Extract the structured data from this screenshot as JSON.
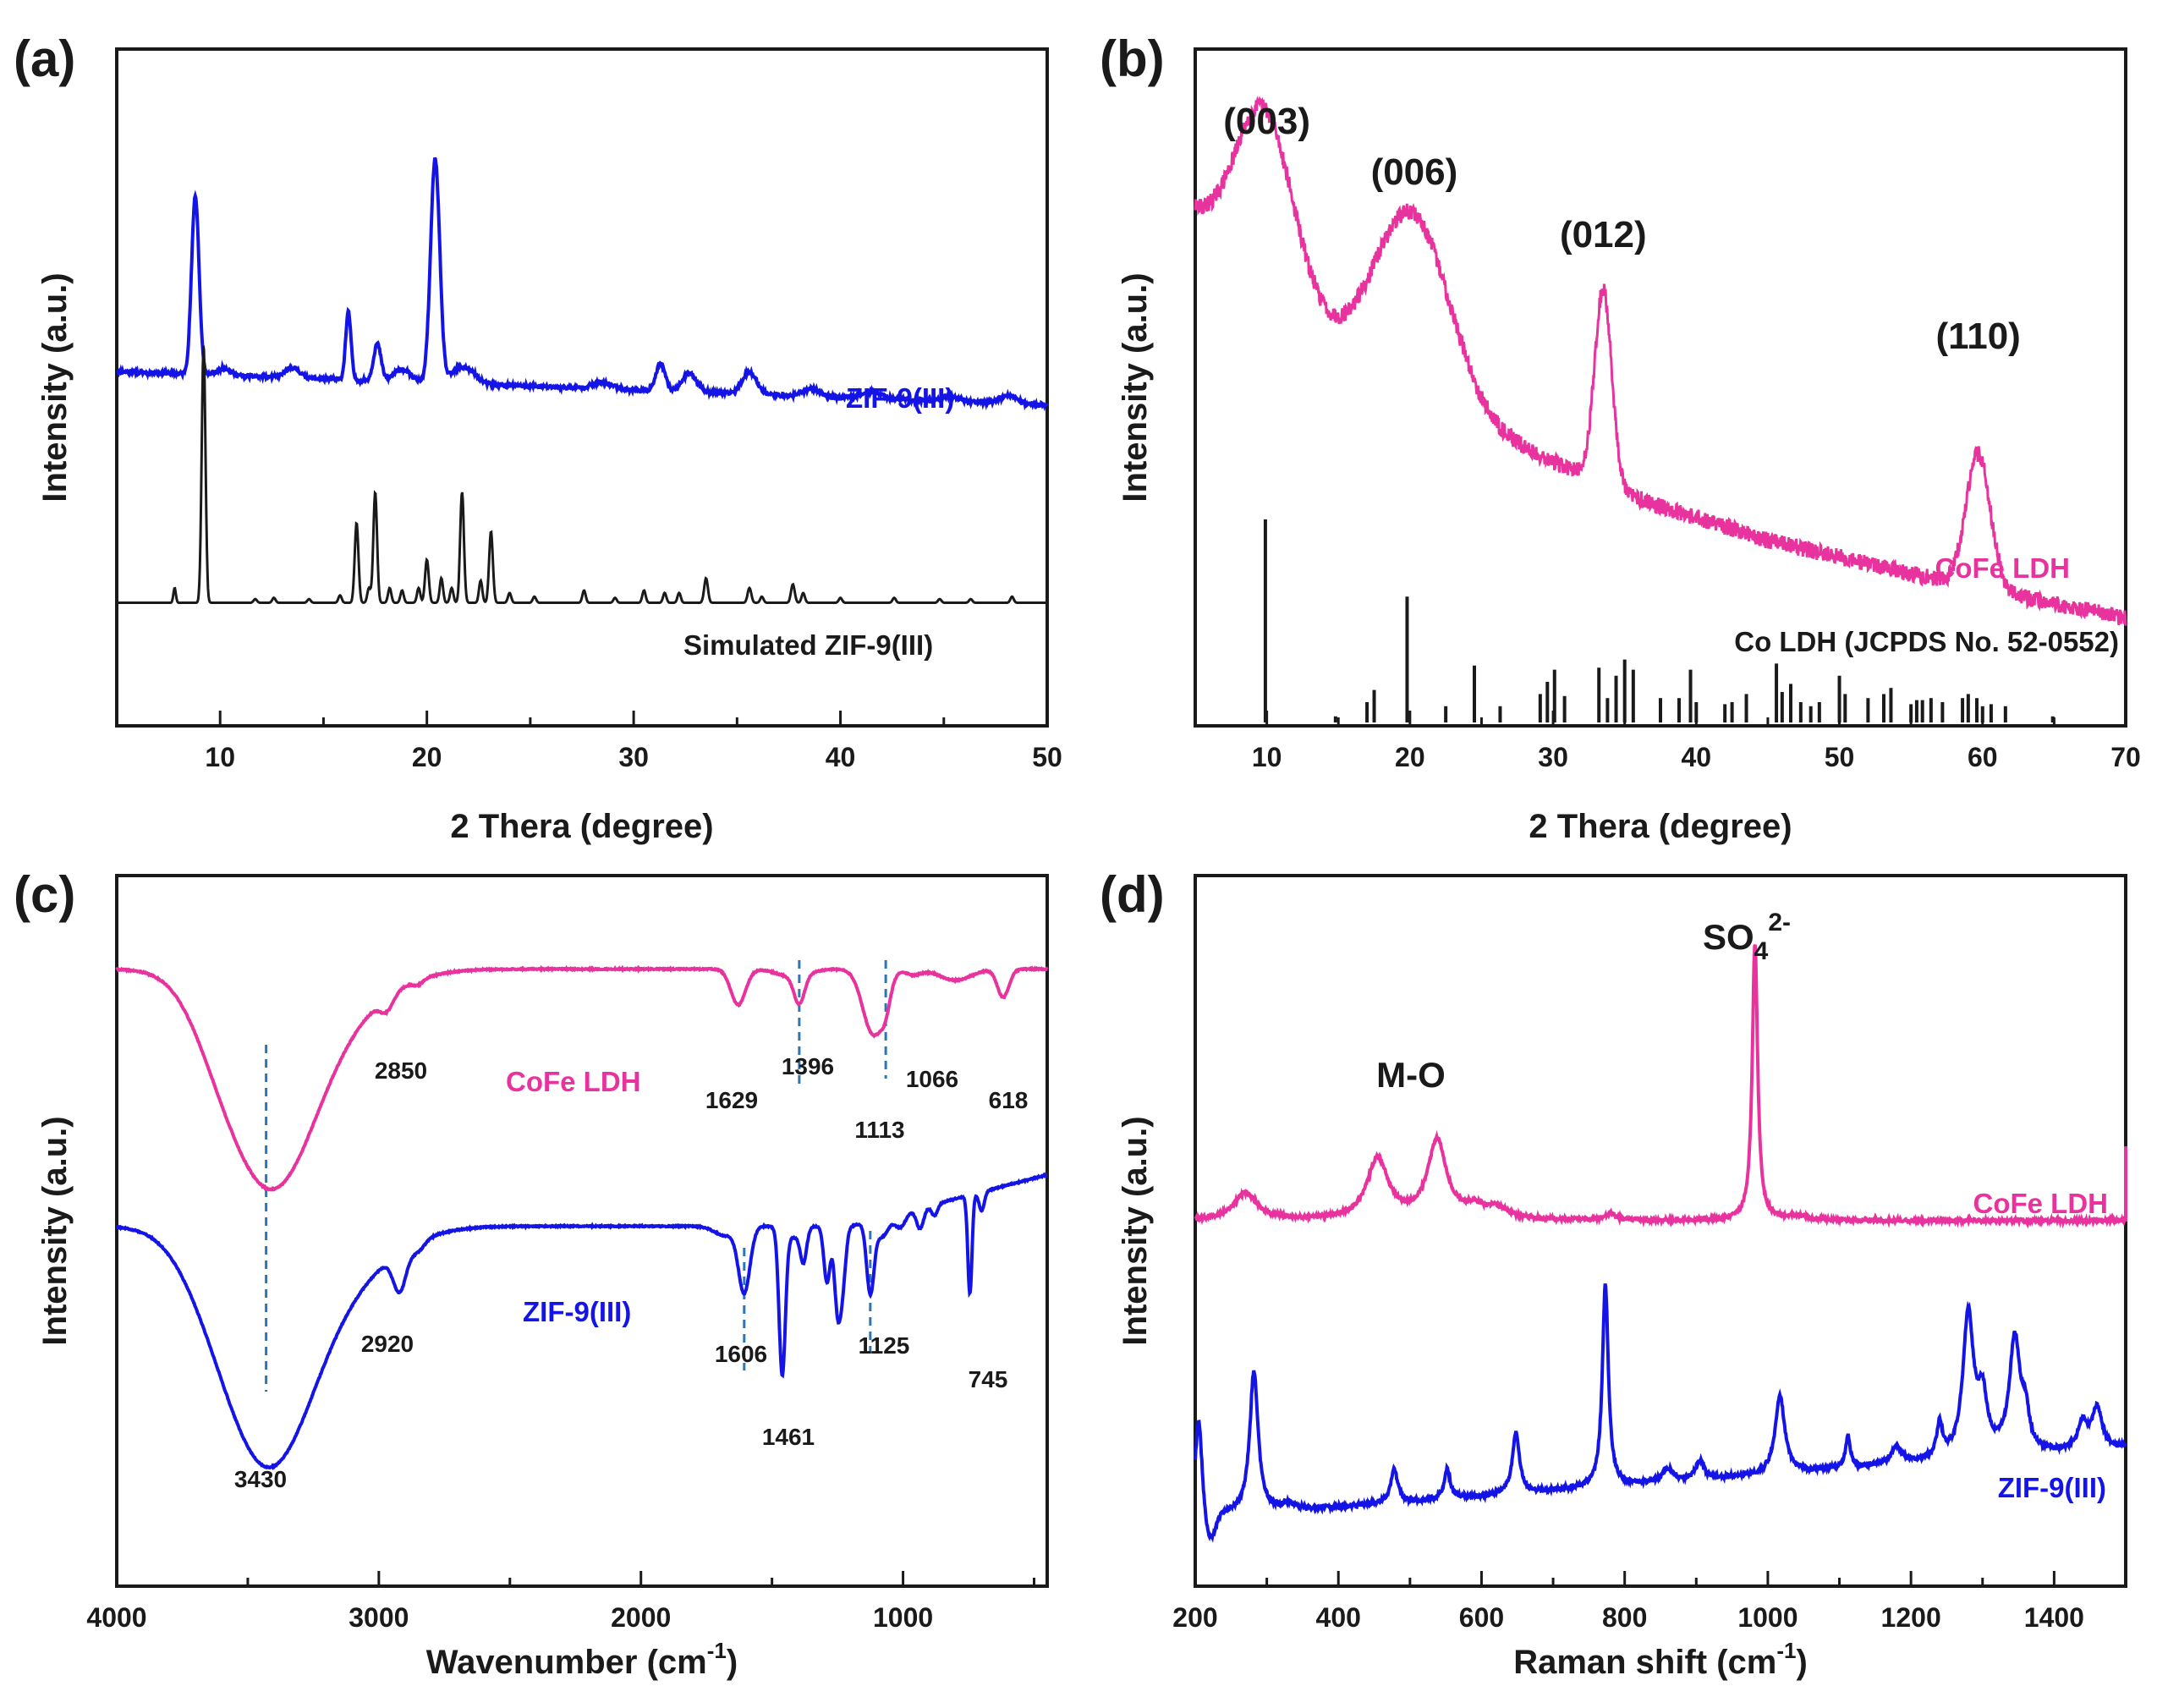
{
  "colors": {
    "pink": "#e8339e",
    "blue": "#1414e6",
    "black": "#1a1a1a",
    "dash": "#2e75b6"
  },
  "chart_data": [
    {
      "id": "a",
      "type": "line",
      "panel_label": "(a)",
      "xlabel": "2 Thera (degree)",
      "ylabel": "Intensity (a.u.)",
      "xlim": [
        5,
        50
      ],
      "xticks": [
        10,
        20,
        30,
        40,
        50
      ],
      "series": [
        {
          "name": "ZIF-9(III)",
          "color": "#1414e6",
          "offset": 1.7,
          "baseline": 1.88,
          "peaks": [
            [
              8.8,
              1.45,
              0.18
            ],
            [
              10.2,
              0.06,
              0.3
            ],
            [
              13.5,
              0.08,
              0.35
            ],
            [
              16.2,
              0.55,
              0.13
            ],
            [
              17.6,
              0.3,
              0.18
            ],
            [
              18.8,
              0.1,
              0.4
            ],
            [
              20.4,
              1.82,
              0.22
            ],
            [
              21.5,
              0.1,
              0.4
            ],
            [
              22.1,
              0.08,
              0.4
            ],
            [
              28.5,
              0.05,
              0.5
            ],
            [
              31.3,
              0.22,
              0.22
            ],
            [
              32.7,
              0.15,
              0.35
            ],
            [
              35.6,
              0.18,
              0.35
            ],
            [
              38.6,
              0.06,
              0.4
            ],
            [
              41.5,
              0.05,
              0.5
            ],
            [
              45.3,
              0.04,
              0.4
            ],
            [
              48.1,
              0.06,
              0.4
            ]
          ],
          "noise": 0.03,
          "drift": -0.006
        },
        {
          "name": "Simulated ZIF-9(III)",
          "color": "#1a1a1a",
          "offset": 0,
          "baseline": 0.0,
          "peaks": [
            [
              7.8,
              0.12,
              0.06
            ],
            [
              9.2,
              2.1,
              0.09
            ],
            [
              11.7,
              0.03,
              0.08
            ],
            [
              12.6,
              0.04,
              0.08
            ],
            [
              14.3,
              0.03,
              0.08
            ],
            [
              15.8,
              0.06,
              0.08
            ],
            [
              16.6,
              0.65,
              0.09
            ],
            [
              17.2,
              0.12,
              0.08
            ],
            [
              17.5,
              0.9,
              0.09
            ],
            [
              18.2,
              0.12,
              0.08
            ],
            [
              18.8,
              0.1,
              0.08
            ],
            [
              19.6,
              0.12,
              0.08
            ],
            [
              20.0,
              0.35,
              0.09
            ],
            [
              20.7,
              0.2,
              0.08
            ],
            [
              21.2,
              0.12,
              0.08
            ],
            [
              21.7,
              0.9,
              0.09
            ],
            [
              22.6,
              0.18,
              0.08
            ],
            [
              23.1,
              0.58,
              0.09
            ],
            [
              24.0,
              0.08,
              0.08
            ],
            [
              25.2,
              0.05,
              0.08
            ],
            [
              27.6,
              0.1,
              0.08
            ],
            [
              29.1,
              0.04,
              0.08
            ],
            [
              30.5,
              0.1,
              0.08
            ],
            [
              31.5,
              0.08,
              0.08
            ],
            [
              32.2,
              0.08,
              0.08
            ],
            [
              33.5,
              0.2,
              0.09
            ],
            [
              35.6,
              0.12,
              0.09
            ],
            [
              36.2,
              0.05,
              0.08
            ],
            [
              37.7,
              0.15,
              0.09
            ],
            [
              38.2,
              0.08,
              0.08
            ],
            [
              40.0,
              0.04,
              0.08
            ],
            [
              42.6,
              0.04,
              0.08
            ],
            [
              44.8,
              0.03,
              0.08
            ],
            [
              46.3,
              0.03,
              0.08
            ],
            [
              48.3,
              0.05,
              0.08
            ]
          ],
          "noise": 0.0,
          "drift": 0
        }
      ],
      "series_labels": [
        "ZIF-9(III)",
        "Simulated ZIF-9(III)"
      ],
      "ylim": [
        -1.0,
        4.5
      ]
    },
    {
      "id": "b",
      "type": "line",
      "panel_label": "(b)",
      "xlabel": "2 Thera (degree)",
      "ylabel": "Intensity (a.u.)",
      "xlim": [
        5,
        70
      ],
      "xticks": [
        10,
        20,
        30,
        40,
        50,
        60,
        70
      ],
      "series": [
        {
          "name": "CoFe LDH",
          "color": "#e8339e",
          "offset": 0,
          "baseline_points": [
            [
              5,
              2.45
            ],
            [
              8,
              2.2
            ],
            [
              15,
              1.75
            ],
            [
              25,
              1.3
            ],
            [
              35,
              0.95
            ],
            [
              45,
              0.7
            ],
            [
              55,
              0.52
            ],
            [
              70,
              0.28
            ]
          ],
          "peaks": [
            [
              9.8,
              0.95,
              2.0
            ],
            [
              20.2,
              0.95,
              2.6
            ],
            [
              33.5,
              1.05,
              0.6
            ],
            [
              59.7,
              0.72,
              0.85
            ]
          ],
          "noise": 0.09
        }
      ],
      "hkl_labels": [
        {
          "text": "(003)",
          "x": 10.0
        },
        {
          "text": "(006)",
          "x": 20.3
        },
        {
          "text": "(012)",
          "x": 33.5
        },
        {
          "text": "(110)",
          "x": 59.7
        }
      ],
      "reference": {
        "name": "Co LDH (JCPDS No. 52-0552)",
        "color": "#1a1a1a",
        "sticks": [
          [
            9.9,
            1.0
          ],
          [
            14.8,
            0.03
          ],
          [
            17.0,
            0.1
          ],
          [
            17.5,
            0.16
          ],
          [
            19.8,
            0.62
          ],
          [
            22.5,
            0.08
          ],
          [
            24.5,
            0.28
          ],
          [
            26.3,
            0.08
          ],
          [
            29.1,
            0.14
          ],
          [
            29.6,
            0.2
          ],
          [
            30.1,
            0.26
          ],
          [
            30.8,
            0.13
          ],
          [
            33.2,
            0.27
          ],
          [
            33.8,
            0.12
          ],
          [
            34.4,
            0.23
          ],
          [
            35.0,
            0.31
          ],
          [
            35.6,
            0.26
          ],
          [
            37.5,
            0.12
          ],
          [
            38.8,
            0.12
          ],
          [
            39.6,
            0.26
          ],
          [
            40.0,
            0.1
          ],
          [
            42.0,
            0.09
          ],
          [
            42.5,
            0.1
          ],
          [
            43.5,
            0.14
          ],
          [
            45.6,
            0.29
          ],
          [
            46.0,
            0.15
          ],
          [
            46.6,
            0.19
          ],
          [
            47.3,
            0.1
          ],
          [
            48.0,
            0.08
          ],
          [
            48.6,
            0.1
          ],
          [
            50.0,
            0.23
          ],
          [
            50.4,
            0.14
          ],
          [
            52.0,
            0.12
          ],
          [
            53.1,
            0.14
          ],
          [
            53.6,
            0.17
          ],
          [
            55.0,
            0.09
          ],
          [
            55.4,
            0.11
          ],
          [
            55.8,
            0.11
          ],
          [
            56.4,
            0.12
          ],
          [
            57.2,
            0.1
          ],
          [
            58.6,
            0.12
          ],
          [
            59.0,
            0.14
          ],
          [
            59.6,
            0.12
          ],
          [
            60.0,
            0.08
          ],
          [
            60.6,
            0.09
          ],
          [
            61.6,
            0.08
          ],
          [
            64.9,
            0.03
          ]
        ]
      },
      "ylim": [
        -0.3,
        3.35
      ]
    },
    {
      "id": "c",
      "type": "line",
      "panel_label": "(c)",
      "xlabel": "Wavenumber (cm",
      "xlabel_sup": "-1",
      "xlabel_end": ")",
      "ylabel": "Intensity (a.u.)",
      "xlim": [
        4000,
        450
      ],
      "xticks": [
        4000,
        3000,
        2000,
        1000
      ],
      "series": [
        {
          "name": "CoFe LDH",
          "color": "#e8339e",
          "baseline": 0.0,
          "dips": [
            [
              3420,
              2.1,
              165
            ],
            [
              3620,
              0.25,
              100
            ],
            [
              3180,
              0.45,
              200
            ],
            [
              2970,
              0.15,
              25
            ],
            [
              2850,
              0.05,
              20
            ],
            [
              1629,
              0.38,
              28
            ],
            [
              1396,
              0.3,
              20
            ],
            [
              1113,
              0.7,
              40
            ],
            [
              1066,
              0.2,
              18
            ],
            [
              1420,
              0.08,
              60
            ],
            [
              800,
              0.12,
              60
            ],
            [
              618,
              0.3,
              22
            ],
            [
              960,
              0.06,
              30
            ]
          ],
          "tail": [
            [
              450,
              -0.05
            ]
          ]
        },
        {
          "name": "ZIF-9(III)",
          "color": "#1414e6",
          "baseline": -2.75,
          "dips": [
            [
              3430,
              2.35,
              170
            ],
            [
              3650,
              0.2,
              120
            ],
            [
              3150,
              0.5,
              200
            ],
            [
              2920,
              0.42,
              25
            ],
            [
              2850,
              0.1,
              25
            ],
            [
              1606,
              0.7,
              22
            ],
            [
              1680,
              0.1,
              40
            ],
            [
              1461,
              1.55,
              12
            ],
            [
              1420,
              0.12,
              30
            ],
            [
              1380,
              0.35,
              12
            ],
            [
              1290,
              0.6,
              12
            ],
            [
              1250,
              0.85,
              12
            ],
            [
              1230,
              0.55,
              12
            ],
            [
              1125,
              0.75,
              14
            ],
            [
              1080,
              0.2,
              25
            ],
            [
              1010,
              0.15,
              20
            ],
            [
              935,
              0.22,
              14
            ],
            [
              880,
              0.12,
              12
            ],
            [
              745,
              1.05,
              8
            ],
            [
              700,
              0.2,
              10
            ]
          ],
          "tilt": [
            [
              1200,
              0.0
            ],
            [
              450,
              0.55
            ]
          ]
        }
      ],
      "peak_labels": [
        {
          "text": "2850",
          "series": 0,
          "x": 2850
        },
        {
          "text": "1629",
          "series": 0,
          "x": 1629
        },
        {
          "text": "1396",
          "series": 0,
          "x": 1396
        },
        {
          "text": "1066",
          "series": 0,
          "x": 1066
        },
        {
          "text": "1113",
          "series": 0,
          "x": 1113
        },
        {
          "text": "618",
          "series": 0,
          "x": 618
        },
        {
          "text": "2920",
          "series": 1,
          "x": 2920
        },
        {
          "text": "1606",
          "series": 1,
          "x": 1606
        },
        {
          "text": "1461",
          "series": 1,
          "x": 1461
        },
        {
          "text": "1125",
          "series": 1,
          "x": 1125
        },
        {
          "text": "745",
          "series": 1,
          "x": 745
        },
        {
          "text": "3430",
          "series": 1,
          "x": 3430
        }
      ],
      "dashed_lines": [
        3430,
        1396,
        1066,
        1606,
        1125
      ],
      "ylim": [
        -6.6,
        1.0
      ]
    },
    {
      "id": "d",
      "type": "line",
      "panel_label": "(d)",
      "xlabel": "Raman shift (cm",
      "xlabel_sup": "-1",
      "xlabel_end": ")",
      "ylabel": "Intensity (a.u.)",
      "xlim": [
        200,
        1500
      ],
      "xticks": [
        200,
        400,
        600,
        800,
        1000,
        1200,
        1400
      ],
      "series": [
        {
          "name": "CoFe LDH",
          "color": "#e8339e",
          "baseline": 2.2,
          "peaks": [
            [
              270,
              0.2,
              20
            ],
            [
              455,
              0.45,
              18
            ],
            [
              538,
              0.58,
              16
            ],
            [
              590,
              0.07,
              15
            ],
            [
              620,
              0.08,
              20
            ],
            [
              780,
              0.05,
              8
            ],
            [
              982,
              2.05,
              4.5
            ],
            [
              1040,
              0.03,
              20
            ]
          ],
          "noise": 0.025,
          "end_spike": 0.55
        },
        {
          "name": "ZIF-9(III)",
          "color": "#1414e6",
          "baseline": 0.0,
          "peaks": [
            [
              205,
              0.75,
              6
            ],
            [
              282,
              1.05,
              7
            ],
            [
              330,
              0.05,
              12
            ],
            [
              478,
              0.25,
              6
            ],
            [
              552,
              0.22,
              5
            ],
            [
              648,
              0.45,
              6
            ],
            [
              773,
              1.5,
              5
            ],
            [
              860,
              0.1,
              10
            ],
            [
              905,
              0.14,
              7
            ],
            [
              1017,
              0.58,
              8
            ],
            [
              1112,
              0.24,
              4
            ],
            [
              1180,
              0.12,
              10
            ],
            [
              1240,
              0.25,
              5
            ],
            [
              1280,
              1.05,
              9
            ],
            [
              1300,
              0.4,
              8
            ],
            [
              1345,
              0.85,
              9
            ],
            [
              1360,
              0.25,
              6
            ],
            [
              1440,
              0.2,
              8
            ],
            [
              1460,
              0.3,
              8
            ]
          ],
          "noise": 0.03,
          "dip": [
            220,
            -0.25,
            8
          ],
          "drift": 0.0004
        }
      ],
      "annotations": [
        {
          "text": "M-O",
          "x": 497
        },
        {
          "text": "SO",
          "sub": "4",
          "sup": "2-",
          "x": 985
        }
      ],
      "ylim": [
        -0.5,
        4.75
      ]
    }
  ]
}
